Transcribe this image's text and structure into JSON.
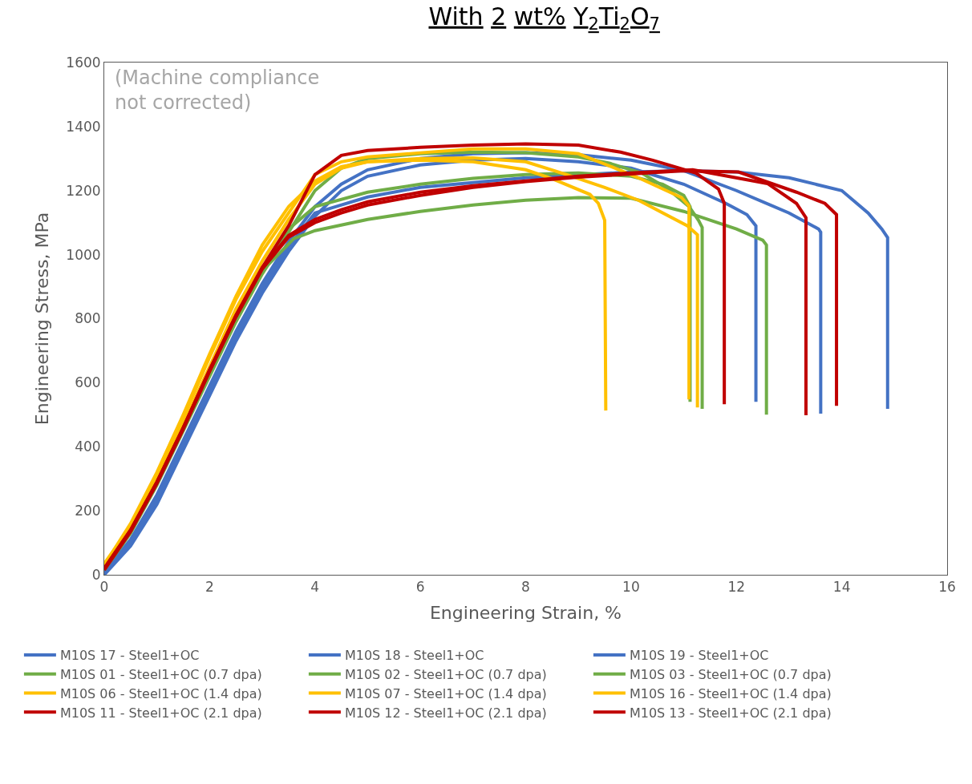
{
  "chart_data": {
    "type": "line",
    "title": "With 2 wt% Y$_{2}$Ti$_{2}$O$_{7}$",
    "xlabel": "Engineering Strain, %",
    "ylabel": "Engineering Stress, MPa",
    "annotations": [
      "(Machine compliance\nnot corrected)"
    ],
    "xlim": [
      0,
      16
    ],
    "xticks": [
      0,
      2,
      4,
      6,
      8,
      10,
      12,
      14,
      16
    ],
    "ylim": [
      0,
      1600
    ],
    "yticks": [
      0,
      200,
      400,
      600,
      800,
      1000,
      1200,
      1400,
      1600
    ],
    "legend": "bottom",
    "marker": "none",
    "line_style": "solid",
    "series": [
      {
        "name": "M10S 17 - Steel1+OC",
        "color": "#4472c4",
        "x": [
          0,
          0.5,
          1,
          1.5,
          2,
          2.5,
          3,
          3.5,
          4,
          4.5,
          5,
          6,
          7,
          8,
          9,
          10,
          11,
          11.8,
          12.2,
          12.37,
          12.37
        ],
        "values": [
          0,
          90,
          220,
          390,
          560,
          730,
          880,
          1010,
          1120,
          1200,
          1245,
          1280,
          1295,
          1300,
          1290,
          1270,
          1220,
          1160,
          1125,
          1090,
          540
        ]
      },
      {
        "name": "M10S 18 - Steel1+OC",
        "color": "#4472c4",
        "x": [
          0,
          0.5,
          1,
          1.5,
          2,
          2.5,
          3,
          3.5,
          4,
          4.5,
          5,
          6,
          7,
          8,
          9,
          10,
          11,
          12,
          13,
          13.56,
          13.6,
          13.6
        ],
        "values": [
          10,
          110,
          250,
          420,
          590,
          760,
          910,
          1040,
          1150,
          1220,
          1265,
          1300,
          1315,
          1318,
          1312,
          1295,
          1262,
          1200,
          1130,
          1080,
          1070,
          503
        ]
      },
      {
        "name": "M10S 19 - Steel1+OC",
        "color": "#4472c4",
        "x": [
          0,
          0.5,
          1,
          1.5,
          2,
          2.5,
          3,
          3.5,
          4,
          5,
          6,
          8,
          10,
          11,
          12,
          13,
          14,
          14.5,
          14.76,
          14.87,
          14.87
        ],
        "values": [
          5,
          100,
          235,
          405,
          575,
          745,
          895,
          1025,
          1130,
          1180,
          1210,
          1240,
          1258,
          1262,
          1258,
          1240,
          1200,
          1130,
          1080,
          1053,
          518
        ]
      },
      {
        "name": "M10S 01 - Steel1+OC (0.7 dpa)",
        "color": "#70ad47",
        "x": [
          0,
          0.5,
          1,
          1.5,
          2,
          2.5,
          3,
          3.5,
          4,
          5,
          6,
          7,
          8,
          9,
          10,
          10.6,
          11.0,
          11.12,
          11.12
        ],
        "values": [
          20,
          140,
          290,
          460,
          630,
          800,
          950,
          1080,
          1150,
          1195,
          1220,
          1238,
          1250,
          1255,
          1245,
          1220,
          1185,
          1150,
          540
        ]
      },
      {
        "name": "M10S 02 - Steel1+OC (0.7 dpa)",
        "color": "#70ad47",
        "x": [
          0,
          0.5,
          1,
          1.5,
          2,
          2.5,
          3,
          3.5,
          4,
          4.5,
          5,
          6,
          7,
          8,
          9,
          9.6,
          10.2,
          10.7,
          11.1,
          11.28,
          11.35,
          11.35
        ],
        "values": [
          15,
          130,
          280,
          450,
          620,
          790,
          940,
          1070,
          1200,
          1270,
          1300,
          1315,
          1320,
          1318,
          1305,
          1285,
          1255,
          1205,
          1150,
          1107,
          1085,
          518
        ]
      },
      {
        "name": "M10S 03 - Steel1+OC (0.7 dpa)",
        "color": "#70ad47",
        "x": [
          0,
          0.5,
          1,
          1.5,
          2,
          2.5,
          3,
          3.6,
          4,
          5,
          6,
          7,
          8,
          9,
          10,
          11,
          12,
          12.5,
          12.57,
          12.57
        ],
        "values": [
          20,
          140,
          290,
          460,
          630,
          800,
          950,
          1050,
          1075,
          1110,
          1135,
          1155,
          1170,
          1178,
          1176,
          1135,
          1080,
          1045,
          1030,
          500
        ]
      },
      {
        "name": "M10S 06 - Steel1+OC (1.4 dpa)",
        "color": "#ffc000",
        "x": [
          0,
          0.5,
          1,
          1.5,
          2,
          2.5,
          3,
          3.5,
          4,
          4.5,
          5,
          6,
          7,
          8,
          8.5,
          9.22,
          9.38,
          9.5,
          9.52
        ],
        "values": [
          30,
          160,
          320,
          500,
          690,
          870,
          1030,
          1150,
          1230,
          1275,
          1290,
          1295,
          1290,
          1265,
          1237,
          1188,
          1160,
          1107,
          513
        ]
      },
      {
        "name": "M10S 07 - Steel1+OC (1.4 dpa)",
        "color": "#ffc000",
        "x": [
          0,
          0.5,
          1,
          1.5,
          2,
          2.5,
          3,
          3.5,
          4,
          4.5,
          5,
          6,
          7,
          8,
          9,
          9.7,
          10.14,
          10.96,
          11.1,
          11.1
        ],
        "values": [
          25,
          150,
          310,
          490,
          680,
          860,
          1010,
          1130,
          1250,
          1290,
          1305,
          1318,
          1330,
          1330,
          1315,
          1270,
          1240,
          1178,
          1152,
          548
        ]
      },
      {
        "name": "M10S 16 - Steel1+OC (1.4 dpa)",
        "color": "#ffc000",
        "x": [
          0,
          0.5,
          1,
          1.5,
          2,
          2.5,
          3,
          3.5,
          4,
          4.5,
          5,
          6,
          7,
          8,
          8.78,
          9.5,
          10.14,
          11.07,
          11.26,
          11.26
        ],
        "values": [
          35,
          150,
          300,
          470,
          650,
          830,
          980,
          1110,
          1220,
          1270,
          1290,
          1300,
          1302,
          1290,
          1250,
          1210,
          1170,
          1090,
          1062,
          523
        ]
      },
      {
        "name": "M10S 11 - Steel1+OC (2.1 dpa)",
        "color": "#c00000",
        "x": [
          0,
          0.5,
          1,
          1.5,
          2,
          2.5,
          3,
          3.5,
          4,
          4.5,
          5,
          6,
          7,
          8,
          9,
          9.8,
          10.41,
          11.23,
          11.66,
          11.77,
          11.77
        ],
        "values": [
          20,
          140,
          290,
          460,
          640,
          810,
          960,
          1090,
          1250,
          1310,
          1325,
          1335,
          1342,
          1346,
          1342,
          1320,
          1295,
          1255,
          1205,
          1160,
          533
        ]
      },
      {
        "name": "M10S 12 - Steel1+OC (2.1 dpa)",
        "color": "#c00000",
        "x": [
          0,
          0.5,
          1,
          1.5,
          2,
          2.5,
          3,
          3.5,
          4,
          4.5,
          5,
          6,
          7,
          8,
          9,
          10,
          11.17,
          12.59,
          13.14,
          13.32,
          13.32
        ],
        "values": [
          20,
          140,
          290,
          460,
          640,
          810,
          960,
          1060,
          1110,
          1140,
          1165,
          1195,
          1215,
          1230,
          1245,
          1255,
          1265,
          1222,
          1160,
          1115,
          498
        ]
      },
      {
        "name": "M10S 13 - Steel1+OC (2.1 dpa)",
        "color": "#c00000",
        "x": [
          0,
          0.5,
          1,
          1.5,
          2,
          2.5,
          3,
          3.5,
          4,
          4.5,
          5,
          6,
          7,
          8,
          9,
          10,
          11,
          12.04,
          13.14,
          13.68,
          13.9,
          13.9
        ],
        "values": [
          15,
          135,
          285,
          455,
          635,
          805,
          955,
          1055,
          1100,
          1130,
          1155,
          1185,
          1210,
          1228,
          1242,
          1252,
          1262,
          1258,
          1195,
          1160,
          1125,
          528
        ]
      }
    ]
  }
}
